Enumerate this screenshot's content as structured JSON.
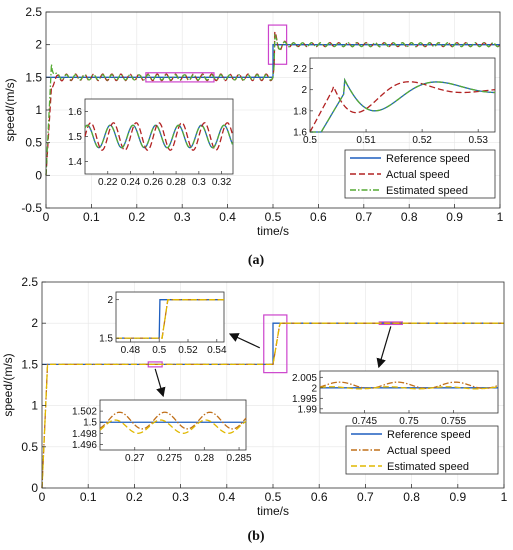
{
  "colors": {
    "reference": "#1f5fbf",
    "actual_a": "#b22222",
    "estimated_a": "#55aa33",
    "actual_b": "#c0701a",
    "estimated_b": "#e0b800",
    "highlight_box": "#cc44cc",
    "axis": "#333333",
    "grid": "#e6e6e6"
  },
  "chart_data": [
    {
      "id": "a",
      "type": "line",
      "caption": "(a)",
      "xlabel": "time/s",
      "ylabel": "speed/(m/s)",
      "xlim": [
        0,
        1
      ],
      "ylim": [
        -0.5,
        2.5
      ],
      "xticks": [
        "0",
        "0.1",
        "0.2",
        "0.3",
        "0.4",
        "0.5",
        "0.6",
        "0.7",
        "0.8",
        "0.9",
        "1"
      ],
      "yticks": [
        "-0.5",
        "0",
        "0.5",
        "1",
        "1.5",
        "2",
        "2.5"
      ],
      "legend_position": "lower-right",
      "series": [
        {
          "name": "Reference speed",
          "style": "solid",
          "color_key": "reference",
          "x": [
            0,
            0.5,
            0.5,
            1
          ],
          "y": [
            1.5,
            1.5,
            2.0,
            2.0
          ]
        },
        {
          "name": "Actual speed",
          "style": "dashed",
          "color_key": "actual_a",
          "start_value": 0,
          "overshoot_1": 1.35,
          "base_1": 1.5,
          "osc_amp_1": 0.05,
          "osc_period": 0.02,
          "step_time": 0.5,
          "overshoot_2": 2.25,
          "base_2": 2.0,
          "osc_amp_2": 0.03
        },
        {
          "name": "Estimated speed",
          "style": "dashdot",
          "color_key": "estimated_a",
          "start_value": 0,
          "overshoot_1": 1.7,
          "base_1": 1.5,
          "osc_amp_1": 0.04,
          "osc_period": 0.02,
          "step_time": 0.5,
          "overshoot_2": 2.18,
          "base_2": 2.0,
          "osc_amp_2": 0.03
        }
      ],
      "zoom_regions": [
        {
          "xlim": [
            0.22,
            0.37
          ],
          "ylim": [
            1.43,
            1.57
          ]
        },
        {
          "xlim": [
            0.49,
            0.53
          ],
          "ylim": [
            1.7,
            2.3
          ]
        }
      ],
      "insets": [
        {
          "xlim": [
            0.2,
            0.33
          ],
          "ylim": [
            1.35,
            1.65
          ],
          "xticks": [
            "0.22",
            "0.24",
            "0.26",
            "0.28",
            "0.3",
            "0.32"
          ],
          "yticks": [
            "1.4",
            "1.5",
            "1.6"
          ]
        },
        {
          "xlim": [
            0.5,
            0.533
          ],
          "ylim": [
            1.6,
            2.3
          ],
          "xticks": [
            "0.5",
            "0.51",
            "0.52",
            "0.53"
          ],
          "yticks": [
            "1.6",
            "1.8",
            "2",
            "2.2"
          ]
        }
      ]
    },
    {
      "id": "b",
      "type": "line",
      "caption": "(b)",
      "xlabel": "time/s",
      "ylabel": "speed/(m/s)",
      "xlim": [
        0,
        1
      ],
      "ylim": [
        0,
        2.5
      ],
      "xticks": [
        "0",
        "0.1",
        "0.2",
        "0.3",
        "0.4",
        "0.5",
        "0.6",
        "0.7",
        "0.8",
        "0.9",
        "1"
      ],
      "yticks": [
        "0",
        "0.5",
        "1",
        "1.5",
        "2",
        "2.5"
      ],
      "legend_position": "lower-right",
      "series": [
        {
          "name": "Reference speed",
          "style": "solid",
          "color_key": "reference",
          "x": [
            0,
            0.5,
            0.5,
            1
          ],
          "y": [
            1.5,
            1.5,
            2.0,
            2.0
          ]
        },
        {
          "name": "Actual speed",
          "style": "dashdot",
          "color_key": "actual_b",
          "rise_time": 0.012,
          "step_time": 0.5,
          "base_1": 1.5,
          "base_2": 2.0
        },
        {
          "name": "Estimated speed",
          "style": "dashed",
          "color_key": "estimated_b",
          "rise_time": 0.012,
          "step_time": 0.5,
          "base_1": 1.5,
          "base_2": 2.0
        }
      ],
      "zoom_regions": [
        {
          "xlim": [
            0.48,
            0.53
          ],
          "ylim": [
            1.4,
            2.1
          ]
        },
        {
          "xlim": [
            0.73,
            0.78
          ],
          "ylim": [
            1.985,
            2.015
          ]
        },
        {
          "xlim": [
            0.23,
            0.26
          ],
          "ylim": [
            1.47,
            1.53
          ]
        }
      ],
      "insets": [
        {
          "xlim": [
            0.47,
            0.545
          ],
          "ylim": [
            1.45,
            2.1
          ],
          "xticks": [
            "0.48",
            "0.5",
            "0.52",
            "0.54"
          ],
          "yticks": [
            "1.5",
            "2"
          ]
        },
        {
          "xlim": [
            0.74,
            0.76
          ],
          "ylim": [
            1.988,
            2.008
          ],
          "xticks": [
            "0.745",
            "0.75",
            "0.755"
          ],
          "yticks": [
            "1.99",
            "1.995",
            "2",
            "2.005"
          ]
        },
        {
          "xlim": [
            0.265,
            0.286
          ],
          "ylim": [
            1.495,
            1.504
          ],
          "xticks": [
            "0.27",
            "0.275",
            "0.28",
            "0.285"
          ],
          "yticks": [
            "1.496",
            "1.498",
            "1.5",
            "1.502"
          ]
        }
      ]
    }
  ]
}
